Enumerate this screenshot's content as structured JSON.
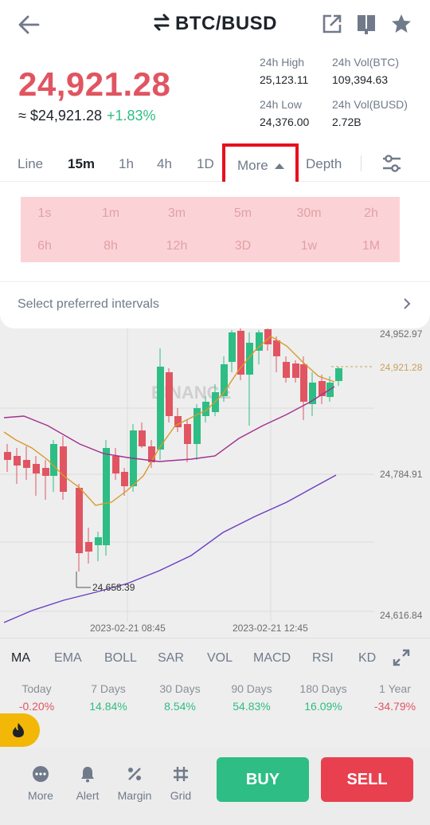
{
  "header": {
    "pair": "BTC/BUSD"
  },
  "price": {
    "last": "24,921.28",
    "usd": "≈ $24,921.28",
    "change": "+1.83%",
    "stats": [
      {
        "label": "24h High",
        "value": "25,123.11"
      },
      {
        "label": "24h Vol(BTC)",
        "value": "109,394.63"
      },
      {
        "label": "24h Low",
        "value": "24,376.00"
      },
      {
        "label": "24h Vol(BUSD)",
        "value": "2.72B"
      }
    ]
  },
  "tabs": {
    "line": "Line",
    "m15": "15m",
    "h1": "1h",
    "h4": "4h",
    "d1": "1D",
    "more": "More",
    "depth": "Depth"
  },
  "intervals": [
    "1s",
    "1m",
    "3m",
    "5m",
    "30m",
    "2h",
    "6h",
    "8h",
    "12h",
    "3D",
    "1w",
    "1M"
  ],
  "preferred_label": "Select preferred intervals",
  "chart": {
    "watermark": "BINANCE",
    "price_labels": [
      "24,952.97",
      "24,921.28",
      "24,784.91",
      "24,616.84"
    ],
    "low_marker": "24,658.39",
    "time_labels": [
      "2023-02-21 08:45",
      "2023-02-21 12:45"
    ]
  },
  "indicators": [
    "MA",
    "EMA",
    "BOLL",
    "SAR",
    "VOL",
    "MACD",
    "RSI",
    "KD"
  ],
  "performance": [
    {
      "label": "Today",
      "value": "-0.20%"
    },
    {
      "label": "7 Days",
      "value": "14.84%"
    },
    {
      "label": "30 Days",
      "value": "8.54%"
    },
    {
      "label": "90 Days",
      "value": "54.83%"
    },
    {
      "label": "180 Days",
      "value": "16.09%"
    },
    {
      "label": "1 Year",
      "value": "-34.79%"
    }
  ],
  "bottom_nav": {
    "more": "More",
    "alert": "Alert",
    "margin": "Margin",
    "grid": "Grid",
    "buy": "BUY",
    "sell": "SELL"
  },
  "colors": {
    "up": "#2ebd85",
    "down": "#e05561",
    "accent": "#f0b90b",
    "highlight": "#e8101e"
  }
}
